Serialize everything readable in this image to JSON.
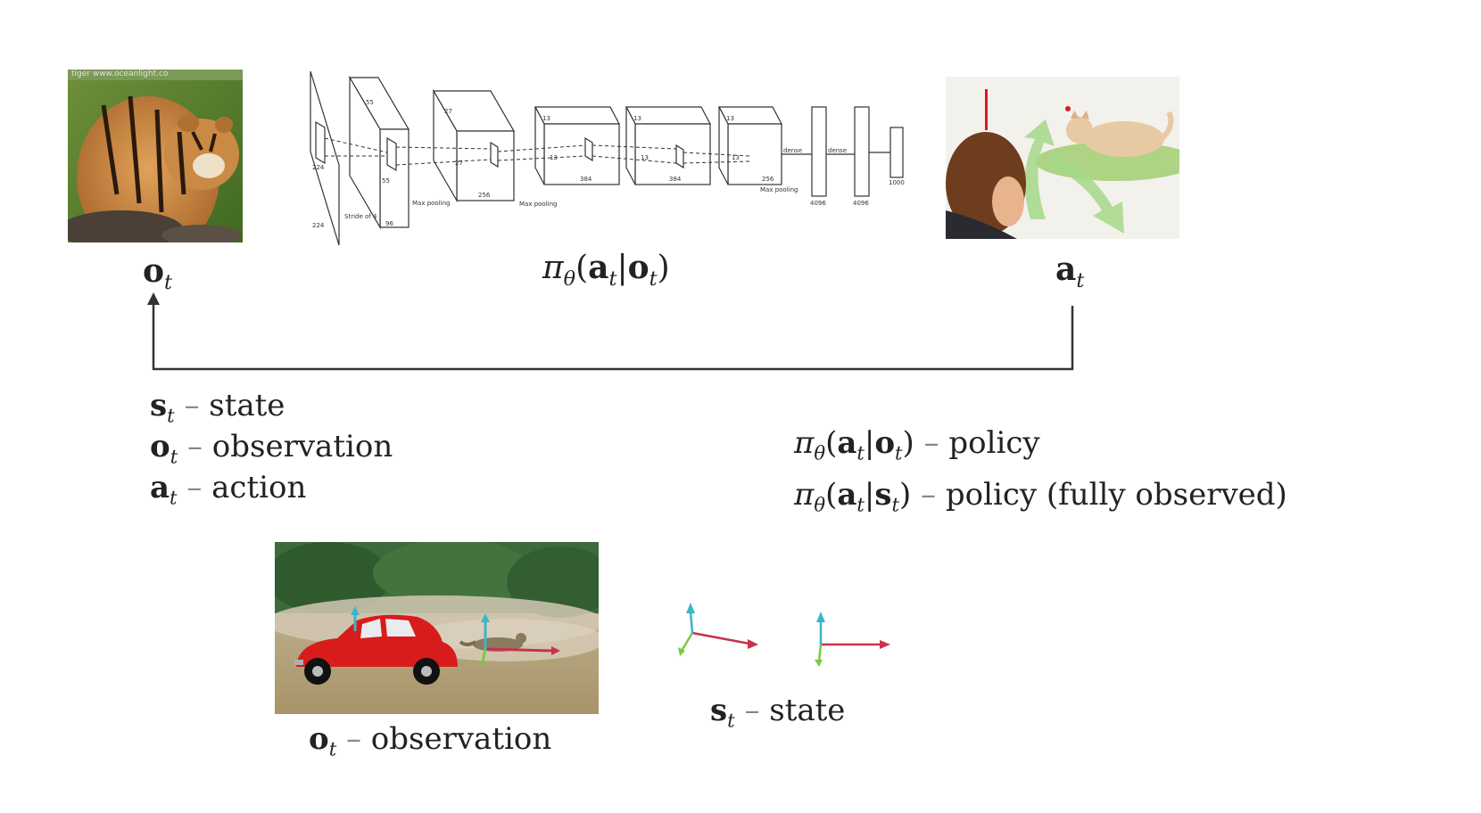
{
  "top_row": {
    "observation_label": {
      "sym": "o",
      "sub": "t"
    },
    "policy_label": {
      "pi": "π",
      "theta": "θ",
      "open": "(",
      "a": "a",
      "a_sub": "t",
      "bar": "|",
      "o": "o",
      "o_sub": "t",
      "close": ")"
    },
    "action_label": {
      "sym": "a",
      "sub": "t"
    }
  },
  "network": {
    "labels": [
      "224",
      "224",
      "Stride of 4",
      "55",
      "55",
      "96",
      "Max pooling",
      "27",
      "27",
      "256",
      "Max pooling",
      "13",
      "13",
      "384",
      "13",
      "13",
      "384",
      "13",
      "13",
      "256",
      "Max pooling",
      "dense",
      "dense",
      "4096",
      "4096",
      "1000"
    ]
  },
  "tiger_photo": {
    "watermark": "tiger www.oceanlight.co"
  },
  "definitions_left": [
    {
      "sym": "s",
      "sub": "t",
      "dash": "–",
      "text": "state"
    },
    {
      "sym": "o",
      "sub": "t",
      "dash": "–",
      "text": "observation"
    },
    {
      "sym": "a",
      "sub": "t",
      "dash": "–",
      "text": "action"
    }
  ],
  "definitions_right": [
    {
      "pi": "π",
      "theta": "θ",
      "a": "a",
      "a_sub": "t",
      "bar": "|",
      "cond": "o",
      "cond_sub": "t",
      "dash": "–",
      "text": "policy"
    },
    {
      "pi": "π",
      "theta": "θ",
      "a": "a",
      "a_sub": "t",
      "bar": "|",
      "cond": "s",
      "cond_sub": "t",
      "dash": "–",
      "text": "policy (fully observed)"
    }
  ],
  "bottom": {
    "observation_caption": {
      "sym": "o",
      "sub": "t",
      "dash": "–",
      "text": "observation"
    },
    "state_caption": {
      "sym": "s",
      "sub": "t",
      "dash": "–",
      "text": "state"
    }
  },
  "colors": {
    "arrow": "#333333",
    "axis_red": "#c8324a",
    "axis_cyan": "#39b6c8",
    "axis_green": "#7ac943",
    "car_red": "#d81c1c"
  }
}
